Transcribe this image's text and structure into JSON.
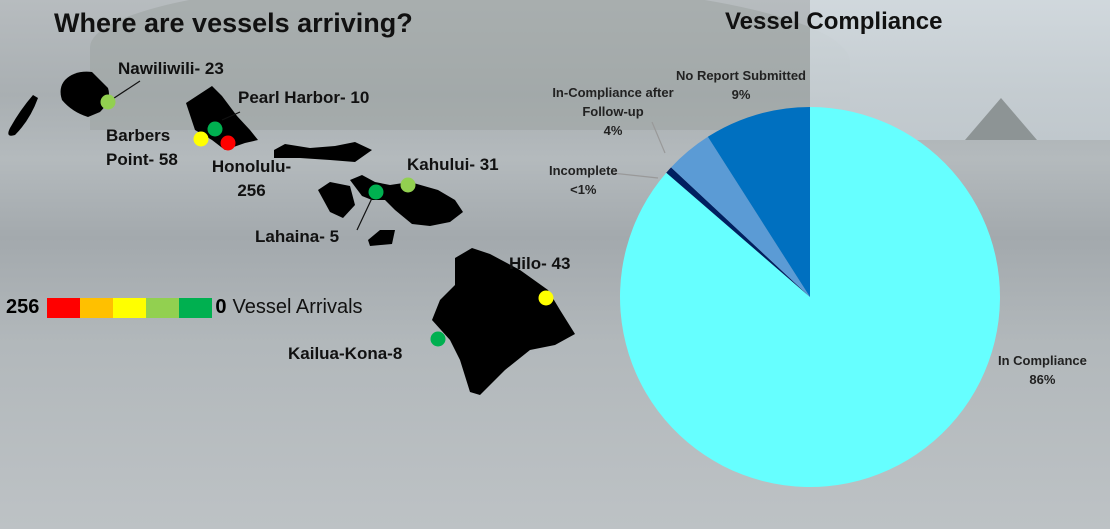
{
  "map": {
    "title": "Where are vessels arriving?",
    "ports": [
      {
        "label": "Nawiliwili- 23",
        "arrivals": 23,
        "color": "#92d050"
      },
      {
        "label": "Pearl Harbor- 10",
        "arrivals": 10,
        "color": "#00b050"
      },
      {
        "label": "Barbers Point- 58",
        "arrivals": 58,
        "color": "#ffff00"
      },
      {
        "label": "Honolulu- 256",
        "arrivals": 256,
        "color": "#ff0000"
      },
      {
        "label": "Kahului- 31",
        "arrivals": 31,
        "color": "#92d050"
      },
      {
        "label": "Lahaina- 5",
        "arrivals": 5,
        "color": "#00b050"
      },
      {
        "label": "Hilo- 43",
        "arrivals": 43,
        "color": "#ffff00"
      },
      {
        "label": "Kailua-Kona-8",
        "arrivals": 8,
        "color": "#00b050"
      }
    ],
    "legend": {
      "max": "256",
      "min": "0",
      "label": "Vessel Arrivals",
      "colors": [
        "#ff0000",
        "#ffc000",
        "#ffff00",
        "#92d050",
        "#00b050"
      ]
    }
  },
  "chart_data": {
    "type": "pie",
    "title": "Vessel Compliance",
    "start": "top",
    "direction": "clockwise",
    "slices": [
      {
        "name": "In Compliance",
        "label": "86%",
        "value": 86,
        "color": "#66ffff"
      },
      {
        "name": "Incomplete",
        "label": "<1%",
        "value": 0.6,
        "color": "#002060"
      },
      {
        "name": "In-Compliance after Follow-up",
        "label": "4%",
        "value": 4,
        "color": "#5b9bd5"
      },
      {
        "name": "No Report Submitted",
        "label": "9%",
        "value": 9,
        "color": "#0070c0"
      }
    ]
  }
}
